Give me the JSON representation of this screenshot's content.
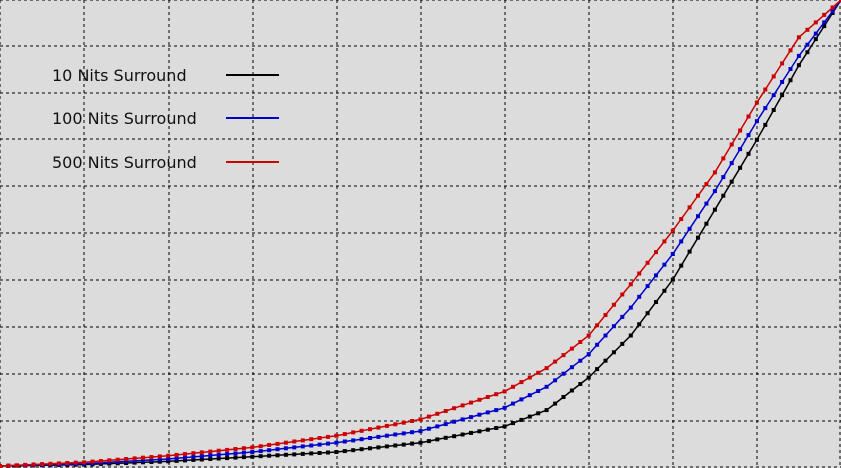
{
  "chart_data": {
    "type": "line",
    "grid": true,
    "grid_style": "dashed",
    "xlim": [
      0,
      100
    ],
    "ylim": [
      0,
      10
    ],
    "legend_position": "top-left",
    "colors": {
      "background": "#dcdcdc",
      "grid": "#000000"
    },
    "series": [
      {
        "name": "10 Nits Surround",
        "color": "#000000",
        "marker": "square",
        "x": [
          0,
          10,
          20,
          30,
          40,
          50,
          60,
          65,
          70,
          75,
          80,
          85,
          90,
          95,
          100
        ],
        "y": [
          0.0,
          0.03,
          0.1,
          0.2,
          0.3,
          0.5,
          0.85,
          1.2,
          1.9,
          2.8,
          4.0,
          5.5,
          7.0,
          8.6,
          10.0
        ]
      },
      {
        "name": "100 Nits Surround",
        "color": "#0000cc",
        "marker": "square",
        "x": [
          0,
          10,
          20,
          30,
          40,
          50,
          60,
          65,
          70,
          75,
          80,
          85,
          90,
          95,
          100
        ],
        "y": [
          0.0,
          0.05,
          0.15,
          0.3,
          0.5,
          0.75,
          1.25,
          1.7,
          2.4,
          3.4,
          4.55,
          5.9,
          7.4,
          8.8,
          10.0
        ]
      },
      {
        "name": "500 Nits Surround",
        "color": "#cc0000",
        "marker": "square",
        "x": [
          0,
          10,
          20,
          30,
          40,
          50,
          60,
          65,
          70,
          75,
          80,
          85,
          90,
          95,
          100
        ],
        "y": [
          0.0,
          0.08,
          0.22,
          0.4,
          0.65,
          1.0,
          1.6,
          2.1,
          2.8,
          3.9,
          5.05,
          6.3,
          7.8,
          9.2,
          10.0
        ]
      }
    ]
  }
}
